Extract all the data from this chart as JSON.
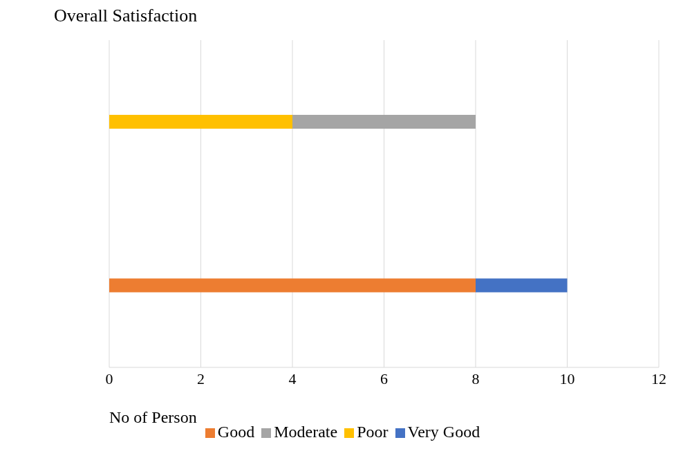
{
  "chart_data": {
    "type": "bar",
    "orientation": "horizontal",
    "stacked": true,
    "title": "Overall Satisfaction",
    "xlabel": "No of Person",
    "categories": [
      null,
      null
    ],
    "series": [
      {
        "name": "Poor",
        "color": "#ffc000",
        "values": [
          4,
          null
        ]
      },
      {
        "name": "Moderate",
        "color": "#a5a5a5",
        "values": [
          4,
          null
        ]
      },
      {
        "name": "Good",
        "color": "#ed7d31",
        "values": [
          null,
          8
        ]
      },
      {
        "name": "Very Good",
        "color": "#4472c4",
        "values": [
          null,
          2
        ]
      }
    ],
    "xlim": [
      0,
      12
    ],
    "xticks": [
      0,
      2,
      4,
      6,
      8,
      10,
      12
    ],
    "grid": "x",
    "legend": "bottom"
  }
}
